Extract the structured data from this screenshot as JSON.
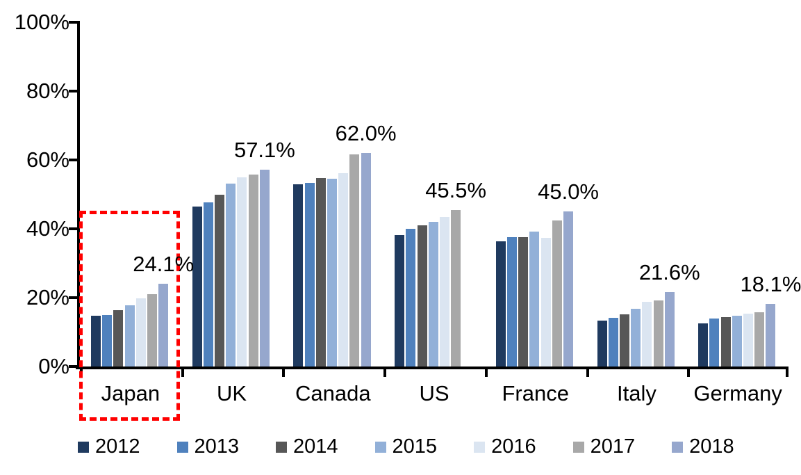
{
  "chart_data": {
    "type": "bar",
    "title": "",
    "xlabel": "",
    "ylabel": "",
    "unit": "%",
    "categories": [
      "Japan",
      "UK",
      "Canada",
      "US",
      "France",
      "Italy",
      "Germany"
    ],
    "series": [
      {
        "name": "2012",
        "color": "#1f3a5f",
        "values": [
          14.7,
          46.4,
          52.9,
          38.1,
          36.4,
          13.3,
          12.5
        ]
      },
      {
        "name": "2013",
        "color": "#4f81bd",
        "values": [
          14.9,
          47.7,
          53.4,
          40.0,
          37.5,
          14.1,
          13.9
        ]
      },
      {
        "name": "2014",
        "color": "#575757",
        "values": [
          16.4,
          49.9,
          54.8,
          41.1,
          37.5,
          15.1,
          14.4
        ]
      },
      {
        "name": "2015",
        "color": "#92b0d8",
        "values": [
          17.8,
          53.1,
          54.6,
          42.1,
          39.2,
          16.8,
          14.8
        ]
      },
      {
        "name": "2016",
        "color": "#dbe5f1",
        "values": [
          19.8,
          54.9,
          56.1,
          43.5,
          37.3,
          18.8,
          15.4
        ]
      },
      {
        "name": "2017",
        "color": "#a8a8a8",
        "values": [
          21.0,
          55.8,
          61.7,
          45.5,
          42.4,
          19.1,
          15.7
        ]
      },
      {
        "name": "2018",
        "color": "#96a7cd",
        "values": [
          24.1,
          57.1,
          62.0,
          null,
          45.0,
          21.6,
          18.1
        ]
      }
    ],
    "data_labels": [
      "24.1%",
      "57.1%",
      "62.0%",
      "45.5%",
      "45.0%",
      "21.6%",
      "18.1%"
    ],
    "ylim": [
      0,
      100
    ],
    "yticks": [
      "100%",
      "80%",
      "60%",
      "40%",
      "20%",
      "0%"
    ],
    "grid": false,
    "legend_position": "bottom",
    "highlight": {
      "category": "Japan",
      "style": "red-dashed-box",
      "color": "#ff0000"
    },
    "note_missing": "US has no 2018 bar"
  }
}
